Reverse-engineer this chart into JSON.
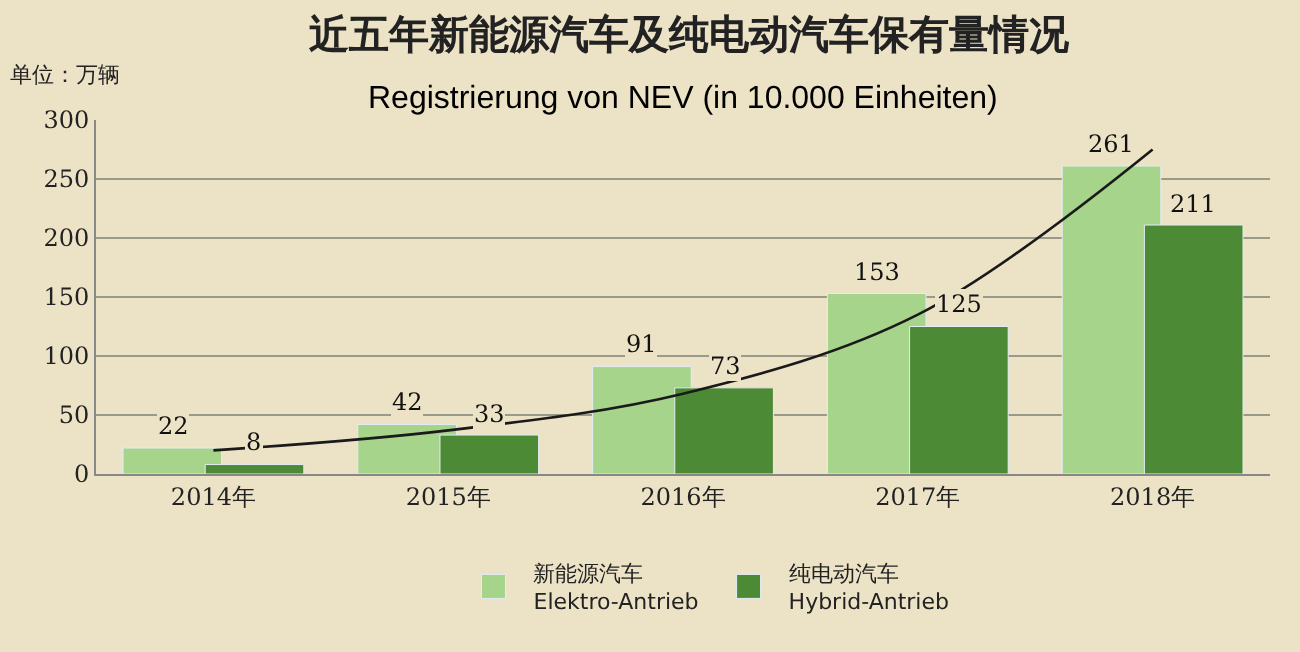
{
  "chart_data": {
    "type": "bar",
    "title": "近五年新能源汽车及纯电动汽车保有量情况",
    "subtitle": "Registrierung von NEV (in 10.000 Einheiten)",
    "ylabel": "单位：万辆",
    "categories": [
      "2014年",
      "2015年",
      "2016年",
      "2017年",
      "2018年"
    ],
    "series": [
      {
        "name": "新能源汽车\nElektro-Antrieb",
        "color": "#a6d48a",
        "values": [
          22,
          42,
          91,
          153,
          261
        ],
        "value_labels": [
          "22",
          "42",
          "91",
          "153",
          "261"
        ]
      },
      {
        "name": "纯电动汽车\nHybrid-Antrieb",
        "color": "#4d8a35",
        "values": [
          8,
          33,
          73,
          125,
          211
        ],
        "value_labels": [
          "8",
          "33",
          "73",
          "125",
          "211"
        ]
      },
      {
        "type": "line",
        "color": "#1a1a1a",
        "values": [
          20,
          37,
          68,
          135,
          275
        ],
        "marker": "none"
      }
    ],
    "ylim": [
      0,
      300
    ],
    "yticks": [
      0,
      50,
      100,
      150,
      200,
      250,
      300
    ],
    "grid": "y",
    "legend": "bottom"
  }
}
